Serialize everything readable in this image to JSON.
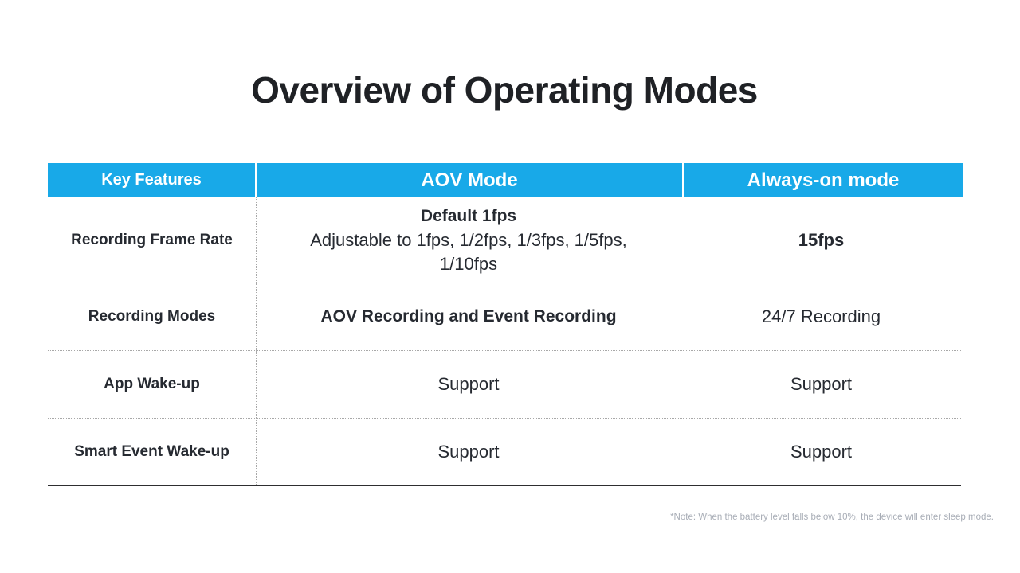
{
  "title": "Overview of Operating Modes",
  "colors": {
    "header_bg": "#18a9e8",
    "header_text": "#ffffff",
    "body_text": "#262a31",
    "note_text": "#a8adb6",
    "bottom_border": "#2e2e30",
    "dotted_line": "#a8a8a8"
  },
  "table": {
    "headers": {
      "features": "Key Features",
      "aov": "AOV Mode",
      "always_on": "Always-on mode"
    },
    "rows": [
      {
        "feature": "Recording Frame Rate",
        "aov_bold": "Default 1fps",
        "aov_line2": "Adjustable to 1fps, 1/2fps, 1/3fps, 1/5fps,",
        "aov_line3": "1/10fps",
        "always": "15fps"
      },
      {
        "feature": "Recording Modes",
        "aov": "AOV Recording and Event Recording",
        "always": "24/7 Recording"
      },
      {
        "feature": "App Wake-up",
        "aov": "Support",
        "always": "Support"
      },
      {
        "feature": "Smart Event Wake-up",
        "aov": "Support",
        "always": "Support"
      }
    ]
  },
  "note": "*Note: When the battery level falls below 10%, the device will enter sleep mode."
}
